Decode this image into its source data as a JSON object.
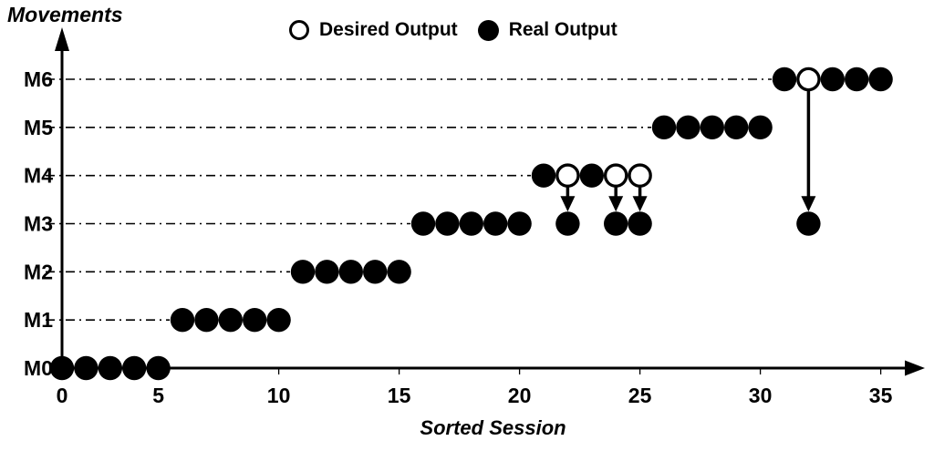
{
  "figure": {
    "background": "#ffffff",
    "foreground": "#000000"
  },
  "chart_data": {
    "type": "scatter",
    "title": "",
    "xlabel": "Sorted Session",
    "ylabel": "Movements",
    "xlim": [
      0,
      36
    ],
    "x_ticks": [
      0,
      5,
      10,
      15,
      20,
      25,
      30,
      35
    ],
    "y_categories": [
      "M0",
      "M1",
      "M2",
      "M3",
      "M4",
      "M5",
      "M6"
    ],
    "grid": "horizontal dash-dot line per movement level, from y-axis to first marker of the row",
    "legend_position": "top-center",
    "legend_entries": [
      {
        "label": "Desired Output",
        "marker": "open-circle"
      },
      {
        "label": "Real Output",
        "marker": "filled-circle"
      }
    ],
    "series": [
      {
        "name": "Real Output",
        "marker": "filled-circle",
        "points": [
          {
            "movement": "M0",
            "sessions": [
              1,
              2,
              3,
              4,
              5
            ]
          },
          {
            "movement": "M1",
            "sessions": [
              6,
              7,
              8,
              9,
              10
            ]
          },
          {
            "movement": "M2",
            "sessions": [
              11,
              12,
              13,
              14,
              15
            ]
          },
          {
            "movement": "M3",
            "sessions": [
              16,
              17,
              18,
              19,
              20,
              22,
              24,
              25,
              32
            ]
          },
          {
            "movement": "M4",
            "sessions": [
              21,
              23
            ]
          },
          {
            "movement": "M5",
            "sessions": [
              26,
              27,
              28,
              29,
              30
            ]
          },
          {
            "movement": "M6",
            "sessions": [
              31,
              33,
              34,
              35
            ]
          }
        ]
      },
      {
        "name": "Desired Output",
        "marker": "open-circle",
        "points": [
          {
            "movement": "M4",
            "sessions": [
              22,
              24,
              25
            ]
          },
          {
            "movement": "M6",
            "sessions": [
              32
            ]
          }
        ]
      }
    ],
    "arrows": [
      {
        "session": 22,
        "from": "M4",
        "to": "M3"
      },
      {
        "session": 24,
        "from": "M4",
        "to": "M3"
      },
      {
        "session": 25,
        "from": "M4",
        "to": "M3"
      },
      {
        "session": 32,
        "from": "M6",
        "to": "M3"
      }
    ]
  }
}
